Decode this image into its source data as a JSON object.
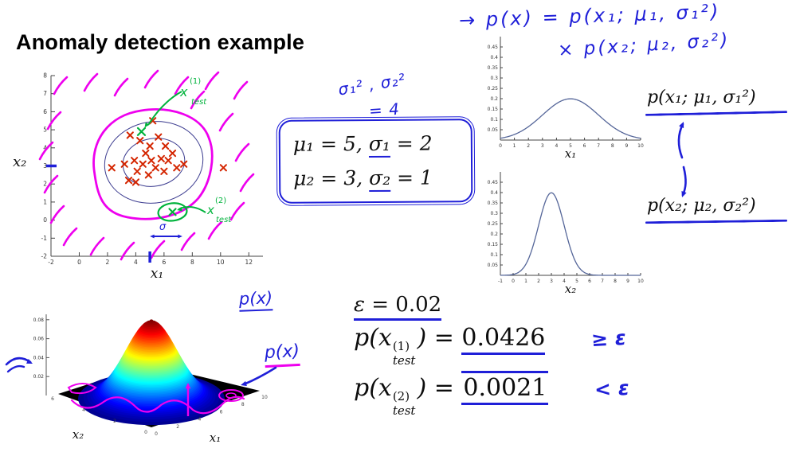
{
  "title": "Anomaly detection example",
  "colors": {
    "ink_blue": "#1f1fd8",
    "magenta": "#ee00ee",
    "green": "#00b33c",
    "red_marker": "#d42500",
    "contour_navy": "#3b3b8f",
    "curve_navy": "#556699",
    "axis_gray": "#444444"
  },
  "handwriting": {
    "top_formula_line1": "→ p(x) = p(x₁; μ₁, σ₁²)",
    "top_formula_line2": "× p(x₂; μ₂, σ₂²)",
    "sigma_note_line1": "σ₁² , σ₂²",
    "sigma_note_line2": "= 4",
    "px_label_top": "p(x)",
    "px_label_side": "p(x)"
  },
  "typeset": {
    "px1_label": "p(x₁; μ₁, σ₁²)",
    "px2_label": "p(x₂; μ₂, σ₂²)"
  },
  "params_box": {
    "line1": {
      "pre": "μ₁ = 5, ",
      "underlined": "σ₁",
      "post": " = 2"
    },
    "line2": {
      "pre": "μ₂ = 3, ",
      "underlined": "σ₂",
      "post": " = 1"
    }
  },
  "equations": {
    "eps": {
      "pre": "ε = ",
      "value": "0.02"
    },
    "test1": {
      "fn": "p(x",
      "sup": "(1)",
      "sub": "test",
      "mid": ") = ",
      "value": "0.0426",
      "cmp": "≥ ε"
    },
    "test2": {
      "fn": "p(x",
      "sup": "(2)",
      "sub": "test",
      "mid": ") = ",
      "value": "0.0021",
      "cmp": "< ε"
    }
  },
  "chart_data": [
    {
      "id": "scatter",
      "type": "scatter",
      "xlabel": "x₁",
      "ylabel": "x₂",
      "xlim": [
        -2,
        13
      ],
      "ylim": [
        -2,
        8
      ],
      "xticks": [
        -2,
        0,
        2,
        4,
        6,
        8,
        10,
        12
      ],
      "yticks": [
        -2,
        -1,
        0,
        1,
        2,
        3,
        4,
        5,
        6,
        7,
        8
      ],
      "points": [
        [
          2.3,
          2.9
        ],
        [
          3.2,
          3.1
        ],
        [
          3.5,
          2.2
        ],
        [
          3.9,
          3.3
        ],
        [
          4.1,
          2.7
        ],
        [
          4.3,
          4.4
        ],
        [
          4.5,
          3.1
        ],
        [
          4.7,
          3.7
        ],
        [
          4.9,
          2.5
        ],
        [
          5.0,
          4.1
        ],
        [
          5.1,
          3.3
        ],
        [
          5.2,
          5.5
        ],
        [
          5.4,
          2.9
        ],
        [
          5.6,
          4.6
        ],
        [
          5.8,
          3.4
        ],
        [
          6.0,
          2.7
        ],
        [
          6.1,
          4.1
        ],
        [
          6.3,
          3.3
        ],
        [
          6.6,
          3.7
        ],
        [
          6.9,
          2.9
        ],
        [
          7.4,
          3.1
        ],
        [
          10.2,
          2.9
        ],
        [
          3.6,
          4.7
        ],
        [
          4.0,
          2.1
        ]
      ],
      "test_points": {
        "test1": {
          "x": 4.4,
          "y": 4.9,
          "base": "x",
          "sup": "(1)",
          "sub": "test"
        },
        "test2": {
          "x": 6.6,
          "y": 0.45,
          "base": "x",
          "sup": "(2)",
          "sub": "test"
        }
      },
      "sigma_arrow_label": "σ"
    },
    {
      "id": "gauss1",
      "type": "line",
      "curve": "gaussian",
      "mu": 5,
      "sigma": 2,
      "xlabel": "x₁",
      "xlim": [
        0,
        10
      ],
      "ylim": [
        0,
        0.5
      ],
      "xticks": [
        0,
        1,
        2,
        3,
        4,
        5,
        6,
        7,
        8,
        9,
        10
      ],
      "yticks": [
        0.05,
        0.1,
        0.15,
        0.2,
        0.25,
        0.3,
        0.35,
        0.4,
        0.45
      ]
    },
    {
      "id": "gauss2",
      "type": "line",
      "curve": "gaussian",
      "mu": 3,
      "sigma": 1,
      "xlabel": "x₂",
      "xlim": [
        -1,
        10
      ],
      "ylim": [
        0,
        0.5
      ],
      "xticks": [
        -1,
        0,
        1,
        2,
        3,
        4,
        5,
        6,
        7,
        8,
        9,
        10
      ],
      "yticks": [
        0.05,
        0.1,
        0.15,
        0.2,
        0.25,
        0.3,
        0.35,
        0.4,
        0.45
      ]
    },
    {
      "id": "surface",
      "type": "surface",
      "colormap": "jet",
      "mu": [
        5,
        3
      ],
      "sigma": [
        2,
        1
      ],
      "xlabel": "x₁",
      "ylabel": "x₂",
      "zticks": [
        0.02,
        0.04,
        0.06,
        0.08
      ],
      "x1ticks": [
        0,
        2,
        4,
        6,
        8,
        10
      ],
      "x2ticks": [
        0,
        2,
        4,
        6
      ]
    }
  ]
}
